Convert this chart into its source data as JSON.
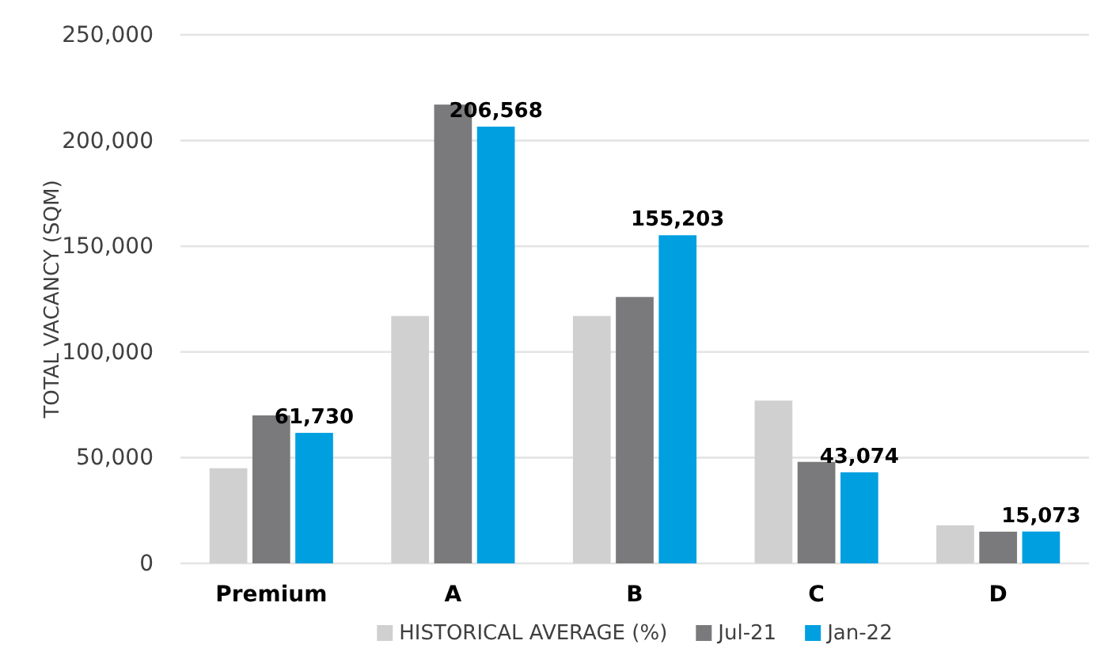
{
  "chart_data": {
    "type": "bar",
    "ylabel": "TOTAL VACANCY (SQM)",
    "categories": [
      "Premium",
      "A",
      "B",
      "C",
      "D"
    ],
    "series": [
      {
        "name": "HISTORICAL AVERAGE (%)",
        "color": "#d0d0d0",
        "values": [
          45000,
          117000,
          117000,
          77000,
          18000
        ]
      },
      {
        "name": "Jul-21",
        "color": "#7a7a7c",
        "values": [
          70000,
          217000,
          126000,
          48000,
          15000
        ]
      },
      {
        "name": "Jan-22",
        "color": "#009fe0",
        "values": [
          61730,
          206568,
          155203,
          43074,
          15073
        ],
        "value_labels": [
          "61,730",
          "206,568",
          "155,203",
          "43,074",
          "15,073"
        ]
      }
    ],
    "ylim": [
      0,
      250000
    ],
    "yticks": [
      {
        "value": 0,
        "label": "0"
      },
      {
        "value": 50000,
        "label": "50,000"
      },
      {
        "value": 100000,
        "label": "100,000"
      },
      {
        "value": 150000,
        "label": "150,000"
      },
      {
        "value": 200000,
        "label": "200,000"
      },
      {
        "value": 250000,
        "label": "250,000"
      }
    ],
    "grid": "y",
    "legend": "bottom"
  }
}
